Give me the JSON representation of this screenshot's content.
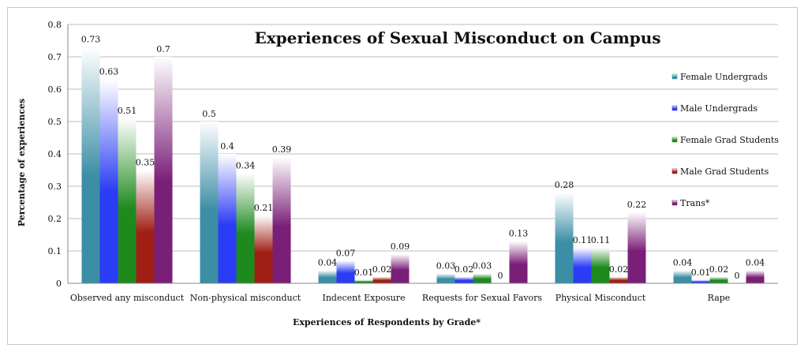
{
  "chart_data": {
    "type": "bar",
    "title": "Experiences of Sexual Misconduct on Campus",
    "xlabel": "Experiences of Respondents by Grade*",
    "ylabel": "Percentage of experiences",
    "ylim": [
      0,
      0.8
    ],
    "yticks": [
      "0",
      "0.1",
      "0.2",
      "0.3",
      "0.4",
      "0.5",
      "0.6",
      "0.7",
      "0.8"
    ],
    "grid": true,
    "legend_position": "right",
    "categories": [
      "Observed any misconduct",
      "Non-physical misconduct",
      "Indecent Exposure",
      "Requests for Sexual Favors",
      "Physical Misconduct",
      "Rape"
    ],
    "series": [
      {
        "name": "Female Undergrads",
        "color": "#3b8ea5",
        "values": [
          0.73,
          0.5,
          0.04,
          0.03,
          0.28,
          0.04
        ]
      },
      {
        "name": "Male Undergrads",
        "color": "#2a3cf5",
        "values": [
          0.63,
          0.4,
          0.07,
          0.02,
          0.11,
          0.01
        ]
      },
      {
        "name": "Female Grad Students",
        "color": "#1e8a1e",
        "values": [
          0.51,
          0.34,
          0.01,
          0.03,
          0.11,
          0.02
        ]
      },
      {
        "name": "Male Grad Students",
        "color": "#a01f14",
        "values": [
          0.35,
          0.21,
          0.02,
          0,
          0.02,
          0
        ]
      },
      {
        "name": "Trans*",
        "color": "#7a1f78",
        "values": [
          0.7,
          0.39,
          0.09,
          0.13,
          0.22,
          0.04
        ]
      }
    ]
  }
}
